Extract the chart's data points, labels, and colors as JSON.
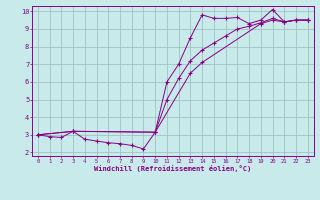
{
  "bg_color": "#c8eaea",
  "line_color": "#880088",
  "grid_color": "#99bbbb",
  "xlabel": "Windchill (Refroidissement éolien,°C)",
  "xlim": [
    -0.5,
    23.5
  ],
  "ylim": [
    1.8,
    10.3
  ],
  "yticks": [
    2,
    3,
    4,
    5,
    6,
    7,
    8,
    9,
    10
  ],
  "xticks": [
    0,
    1,
    2,
    3,
    4,
    5,
    6,
    7,
    8,
    9,
    10,
    11,
    12,
    13,
    14,
    15,
    16,
    17,
    18,
    19,
    20,
    21,
    22,
    23
  ],
  "series1_x": [
    0,
    1,
    2,
    3,
    4,
    5,
    6,
    7,
    8,
    9,
    10,
    11,
    12,
    13,
    14,
    15,
    16,
    17,
    18,
    19,
    20,
    21,
    22,
    23
  ],
  "series1_y": [
    3.0,
    2.9,
    2.85,
    3.2,
    2.75,
    2.65,
    2.55,
    2.5,
    2.4,
    2.2,
    3.15,
    6.0,
    7.0,
    8.5,
    9.8,
    9.6,
    9.6,
    9.65,
    9.3,
    9.5,
    10.1,
    9.4,
    9.5,
    9.5
  ],
  "series2_x": [
    0,
    3,
    10,
    13,
    14,
    19,
    20,
    21,
    22,
    23
  ],
  "series2_y": [
    3.0,
    3.2,
    3.15,
    6.5,
    7.1,
    9.3,
    9.5,
    9.4,
    9.5,
    9.5
  ],
  "series3_x": [
    0,
    3,
    10,
    11,
    12,
    13,
    14,
    15,
    16,
    17,
    18,
    19,
    20,
    21,
    22,
    23
  ],
  "series3_y": [
    3.0,
    3.2,
    3.15,
    5.0,
    6.2,
    7.2,
    7.8,
    8.2,
    8.6,
    9.0,
    9.15,
    9.35,
    9.6,
    9.4,
    9.5,
    9.5
  ]
}
